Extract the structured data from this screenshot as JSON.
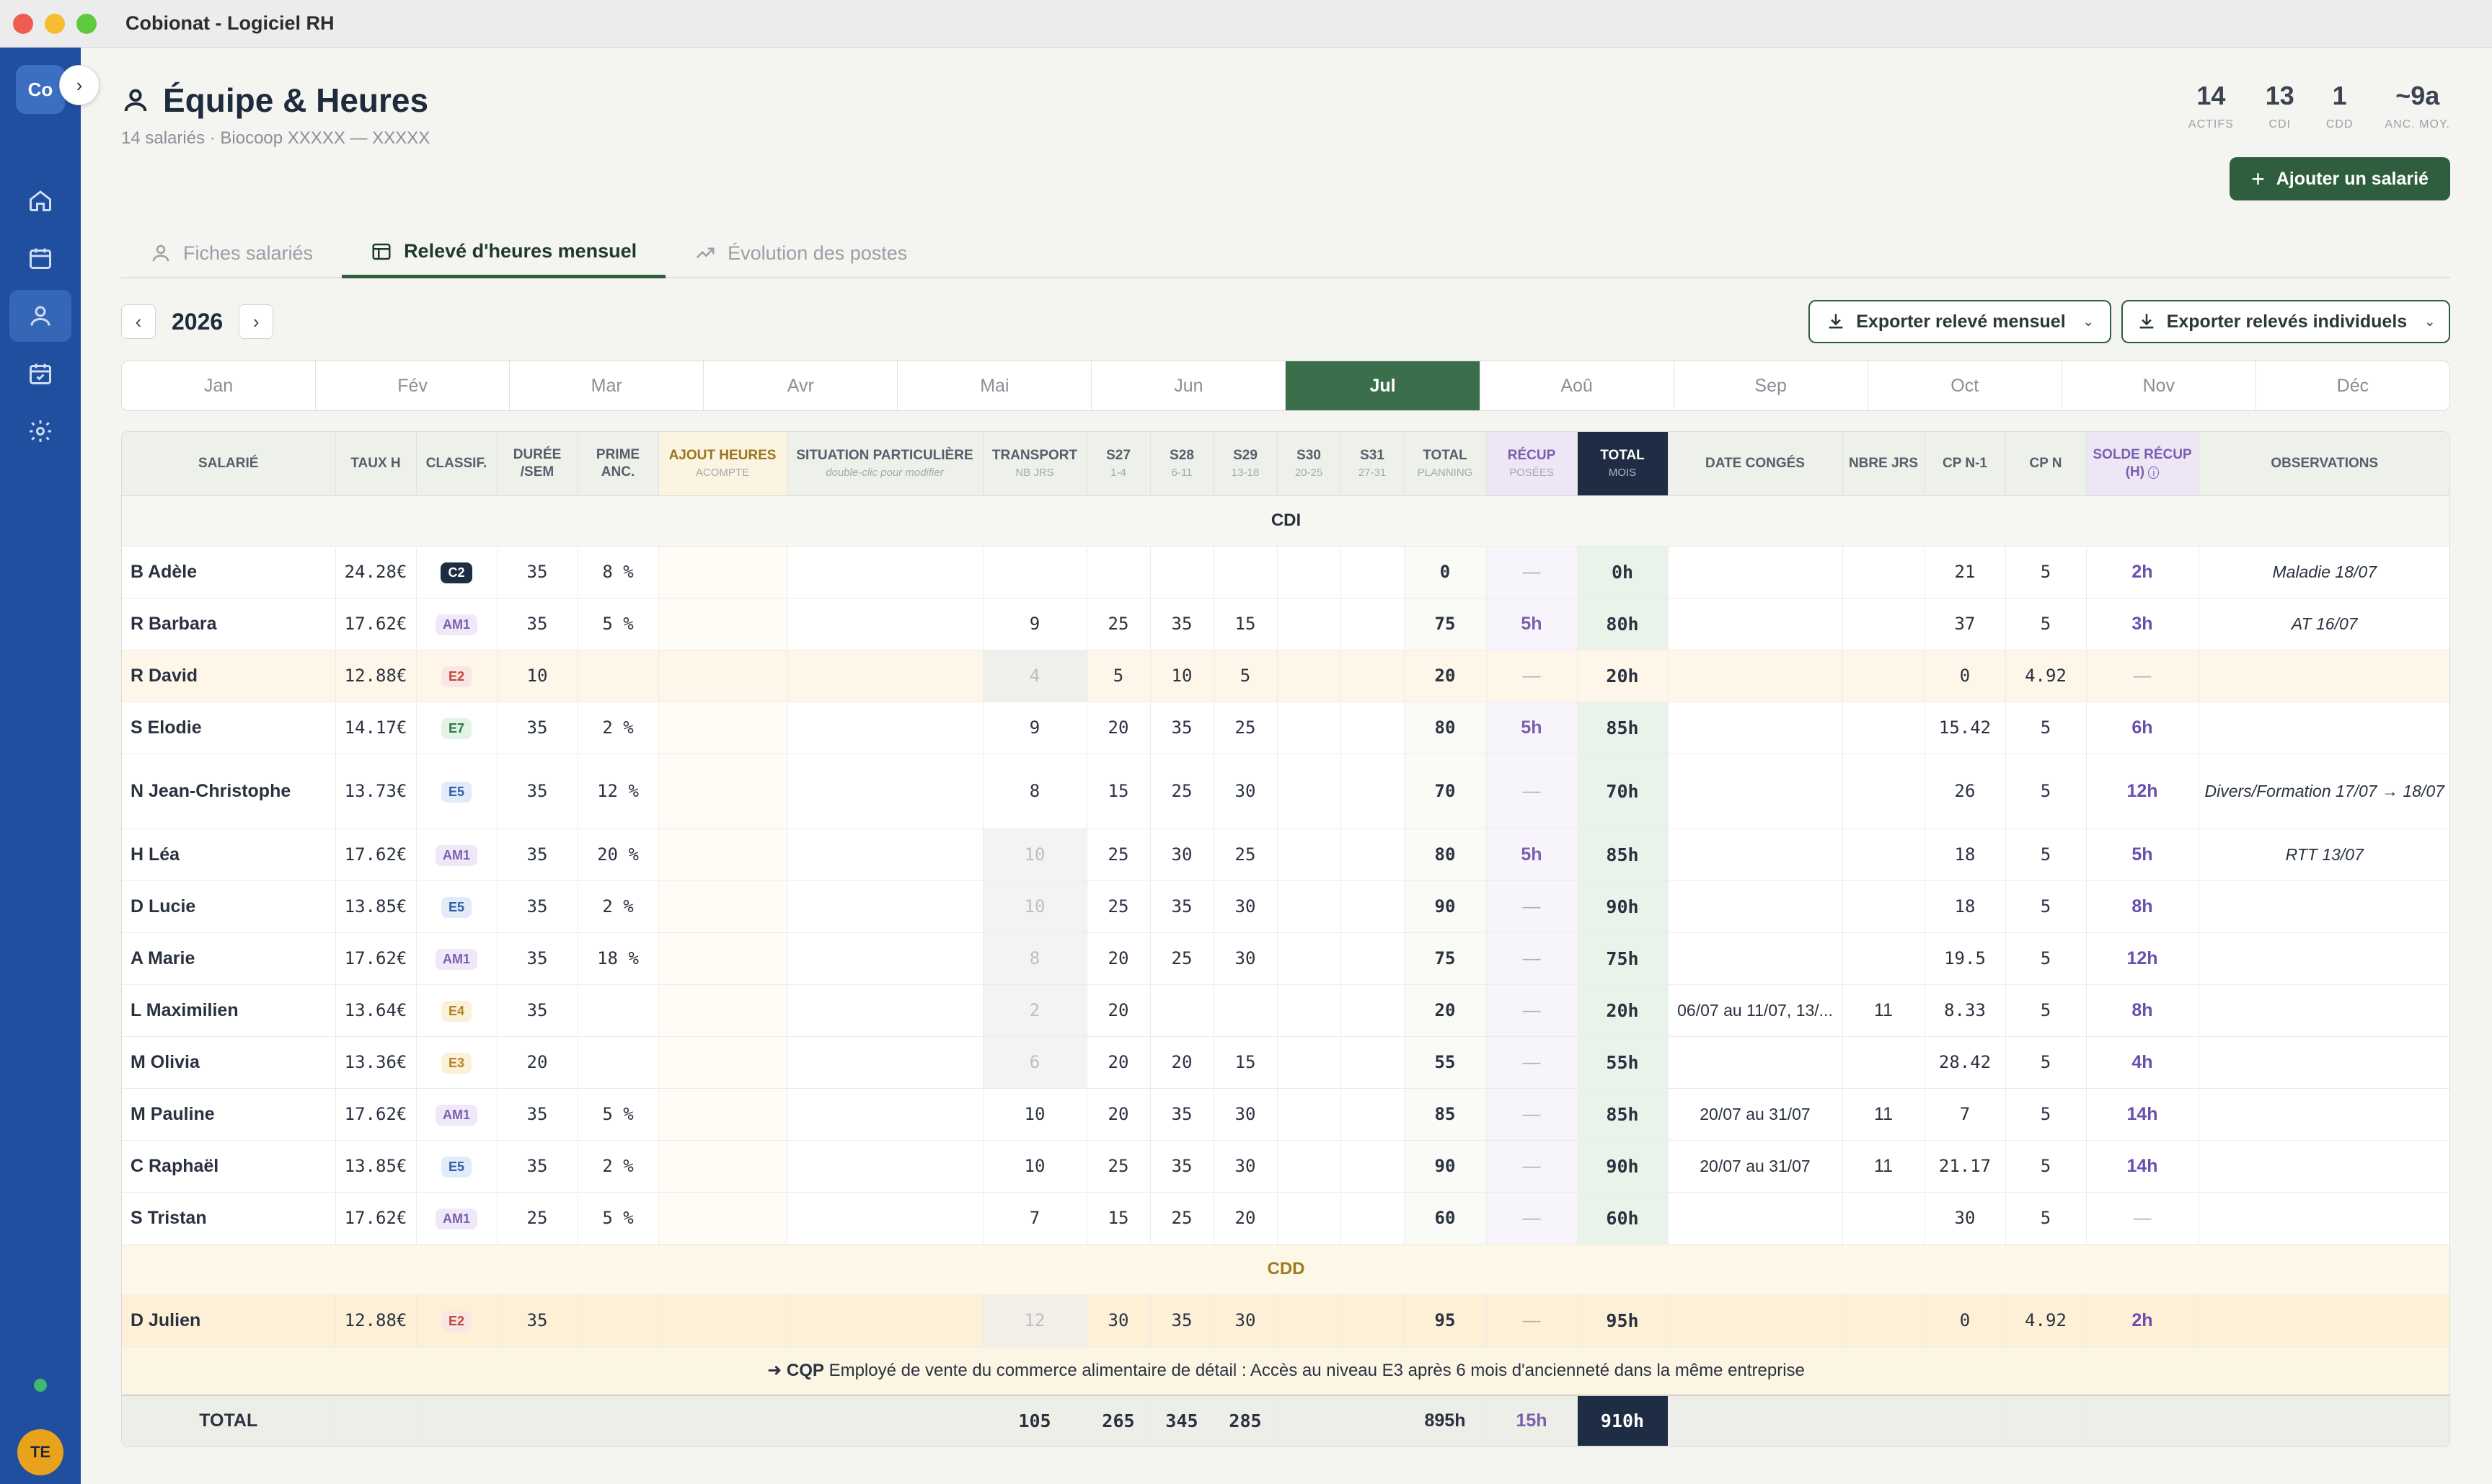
{
  "window": {
    "title": "Cobionat - Logiciel RH"
  },
  "sidebar": {
    "logo": "Co",
    "user_initials": "TE",
    "items": [
      {
        "name": "home",
        "icon": "home-icon"
      },
      {
        "name": "calendar",
        "icon": "calendar-icon"
      },
      {
        "name": "employees",
        "icon": "user-icon"
      },
      {
        "name": "planning",
        "icon": "calendar-check-icon"
      },
      {
        "name": "settings",
        "icon": "gear-icon"
      }
    ]
  },
  "header": {
    "title": "Équipe & Heures",
    "subtitle": "14 salariés · Biocoop XXXXX — XXXXX",
    "stats": [
      {
        "value": "14",
        "label": "ACTIFS"
      },
      {
        "value": "13",
        "label": "CDI"
      },
      {
        "value": "1",
        "label": "CDD"
      },
      {
        "value": "~9a",
        "label": "ANC. MOY."
      }
    ],
    "add_button": "Ajouter un salarié"
  },
  "tabs": [
    {
      "label": "Fiches salariés",
      "active": false
    },
    {
      "label": "Relevé d'heures mensuel",
      "active": true
    },
    {
      "label": "Évolution des postes",
      "active": false
    }
  ],
  "year": "2026",
  "export": {
    "monthly": "Exporter relevé mensuel",
    "individual": "Exporter relevés individuels"
  },
  "months": [
    "Jan",
    "Fév",
    "Mar",
    "Avr",
    "Mai",
    "Jun",
    "Jul",
    "Aoû",
    "Sep",
    "Oct",
    "Nov",
    "Déc"
  ],
  "active_month": "Jul",
  "table": {
    "headers": {
      "salarie": "SALARIÉ",
      "taux": "TAUX H",
      "classif": "CLASSIF.",
      "duree": "DURÉE /SEM",
      "prime": "PRIME ANC.",
      "ajout": "AJOUT HEURES",
      "ajout_sub": "ACOMPTE",
      "situation": "SITUATION PARTICULIÈRE",
      "situation_sub": "double-clic pour modifier",
      "transport": "TRANSPORT",
      "transport_sub": "NB JRS",
      "s27": "S27",
      "s27_sub": "1-4",
      "s28": "S28",
      "s28_sub": "6-11",
      "s29": "S29",
      "s29_sub": "13-18",
      "s30": "S30",
      "s30_sub": "20-25",
      "s31": "S31",
      "s31_sub": "27-31",
      "total_planning": "TOTAL",
      "total_planning_sub": "PLANNING",
      "recup": "RÉCUP",
      "recup_sub": "POSÉES",
      "total_mois": "TOTAL",
      "total_mois_sub": "MOIS",
      "date_conges": "DATE CONGÉS",
      "nbre_jrs": "NBRE JRS",
      "cp_n1": "CP N-1",
      "cp_n": "CP N",
      "solde": "SOLDE RÉCUP (H)",
      "observations": "OBSERVATIONS"
    },
    "section_cdi": "CDI",
    "section_cdd": "CDD",
    "cdi_rows": [
      {
        "name": "B Adèle",
        "taux": "24.28€",
        "classif": "C2",
        "duree": "35",
        "prime": "8 %",
        "transport": "",
        "s27": "",
        "s28": "",
        "s29": "",
        "s30": "",
        "s31": "",
        "total_planning": "0",
        "recup": "—",
        "total_mois": "0h",
        "conges": "",
        "nbre": "",
        "cp_n1": "21",
        "cp_n": "5",
        "solde": "2h",
        "obs": "Maladie 18/07"
      },
      {
        "name": "R Barbara",
        "taux": "17.62€",
        "classif": "AM1",
        "duree": "35",
        "prime": "5 %",
        "transport": "9",
        "s27": "25",
        "s28": "35",
        "s29": "15",
        "s30": "",
        "s31": "",
        "total_planning": "75",
        "recup": "5h",
        "total_mois": "80h",
        "conges": "",
        "nbre": "",
        "cp_n1": "37",
        "cp_n": "5",
        "solde": "3h",
        "obs": "AT 16/07"
      },
      {
        "name": "R David",
        "taux": "12.88€",
        "classif": "E2",
        "duree": "10",
        "prime": "",
        "transport": "4",
        "s27": "5",
        "s28": "10",
        "s29": "5",
        "s30": "",
        "s31": "",
        "total_planning": "20",
        "recup": "—",
        "total_mois": "20h",
        "conges": "",
        "nbre": "",
        "cp_n1": "0",
        "cp_n": "4.92",
        "solde": "—",
        "obs": ""
      },
      {
        "name": "S Elodie",
        "taux": "14.17€",
        "classif": "E7",
        "duree": "35",
        "prime": "2 %",
        "transport": "9",
        "s27": "20",
        "s28": "35",
        "s29": "25",
        "s30": "",
        "s31": "",
        "total_planning": "80",
        "recup": "5h",
        "total_mois": "85h",
        "conges": "",
        "nbre": "",
        "cp_n1": "15.42",
        "cp_n": "5",
        "solde": "6h",
        "obs": ""
      },
      {
        "name": "N Jean-Christophe",
        "taux": "13.73€",
        "classif": "E5",
        "duree": "35",
        "prime": "12 %",
        "transport": "8",
        "s27": "15",
        "s28": "25",
        "s29": "30",
        "s30": "",
        "s31": "",
        "total_planning": "70",
        "recup": "—",
        "total_mois": "70h",
        "conges": "",
        "nbre": "",
        "cp_n1": "26",
        "cp_n": "5",
        "solde": "12h",
        "obs": "Divers/Formation 17/07 → 18/07"
      },
      {
        "name": "H Léa",
        "taux": "17.62€",
        "classif": "AM1",
        "duree": "35",
        "prime": "20 %",
        "transport": "10",
        "s27": "25",
        "s28": "30",
        "s29": "25",
        "s30": "",
        "s31": "",
        "total_planning": "80",
        "recup": "5h",
        "total_mois": "85h",
        "conges": "",
        "nbre": "",
        "cp_n1": "18",
        "cp_n": "5",
        "solde": "5h",
        "obs": "RTT 13/07"
      },
      {
        "name": "D Lucie",
        "taux": "13.85€",
        "classif": "E5",
        "duree": "35",
        "prime": "2 %",
        "transport": "10",
        "s27": "25",
        "s28": "35",
        "s29": "30",
        "s30": "",
        "s31": "",
        "total_planning": "90",
        "recup": "—",
        "total_mois": "90h",
        "conges": "",
        "nbre": "",
        "cp_n1": "18",
        "cp_n": "5",
        "solde": "8h",
        "obs": ""
      },
      {
        "name": "A Marie",
        "taux": "17.62€",
        "classif": "AM1",
        "duree": "35",
        "prime": "18 %",
        "transport": "8",
        "s27": "20",
        "s28": "25",
        "s29": "30",
        "s30": "",
        "s31": "",
        "total_planning": "75",
        "recup": "—",
        "total_mois": "75h",
        "conges": "",
        "nbre": "",
        "cp_n1": "19.5",
        "cp_n": "5",
        "solde": "12h",
        "obs": ""
      },
      {
        "name": "L Maximilien",
        "taux": "13.64€",
        "classif": "E4",
        "duree": "35",
        "prime": "",
        "transport": "2",
        "s27": "20",
        "s28": "",
        "s29": "",
        "s30": "",
        "s31": "",
        "total_planning": "20",
        "recup": "—",
        "total_mois": "20h",
        "conges": "06/07 au 11/07, 13/...",
        "nbre": "11",
        "cp_n1": "8.33",
        "cp_n": "5",
        "solde": "8h",
        "obs": ""
      },
      {
        "name": "M Olivia",
        "taux": "13.36€",
        "classif": "E3",
        "duree": "20",
        "prime": "",
        "transport": "6",
        "s27": "20",
        "s28": "20",
        "s29": "15",
        "s30": "",
        "s31": "",
        "total_planning": "55",
        "recup": "—",
        "total_mois": "55h",
        "conges": "",
        "nbre": "",
        "cp_n1": "28.42",
        "cp_n": "5",
        "solde": "4h",
        "obs": ""
      },
      {
        "name": "M Pauline",
        "taux": "17.62€",
        "classif": "AM1",
        "duree": "35",
        "prime": "5 %",
        "transport": "10",
        "s27": "20",
        "s28": "35",
        "s29": "30",
        "s30": "",
        "s31": "",
        "total_planning": "85",
        "recup": "—",
        "total_mois": "85h",
        "conges": "20/07 au 31/07",
        "nbre": "11",
        "cp_n1": "7",
        "cp_n": "5",
        "solde": "14h",
        "obs": ""
      },
      {
        "name": "C Raphaël",
        "taux": "13.85€",
        "classif": "E5",
        "duree": "35",
        "prime": "2 %",
        "transport": "10",
        "s27": "25",
        "s28": "35",
        "s29": "30",
        "s30": "",
        "s31": "",
        "total_planning": "90",
        "recup": "—",
        "total_mois": "90h",
        "conges": "20/07 au 31/07",
        "nbre": "11",
        "cp_n1": "21.17",
        "cp_n": "5",
        "solde": "14h",
        "obs": ""
      },
      {
        "name": "S Tristan",
        "taux": "17.62€",
        "classif": "AM1",
        "duree": "25",
        "prime": "5 %",
        "transport": "7",
        "s27": "15",
        "s28": "25",
        "s29": "20",
        "s30": "",
        "s31": "",
        "total_planning": "60",
        "recup": "—",
        "total_mois": "60h",
        "conges": "",
        "nbre": "",
        "cp_n1": "30",
        "cp_n": "5",
        "solde": "—",
        "obs": ""
      }
    ],
    "cdd_rows": [
      {
        "name": "D Julien",
        "taux": "12.88€",
        "classif": "E2",
        "duree": "35",
        "prime": "",
        "transport": "12",
        "s27": "30",
        "s28": "35",
        "s29": "30",
        "s30": "",
        "s31": "",
        "total_planning": "95",
        "recup": "—",
        "total_mois": "95h",
        "conges": "",
        "nbre": "",
        "cp_n1": "0",
        "cp_n": "4.92",
        "solde": "2h",
        "obs": ""
      }
    ],
    "cqp_note": {
      "prefix": "➜ CQP",
      "text": "Employé de vente du commerce alimentaire de détail : Accès au niveau E3 après 6 mois d'ancienneté dans la même entreprise"
    },
    "totals": {
      "label": "TOTAL",
      "transport": "105",
      "s27": "265",
      "s28": "345",
      "s29": "285",
      "total_planning": "895h",
      "recup": "15h",
      "total_mois": "910h"
    }
  }
}
